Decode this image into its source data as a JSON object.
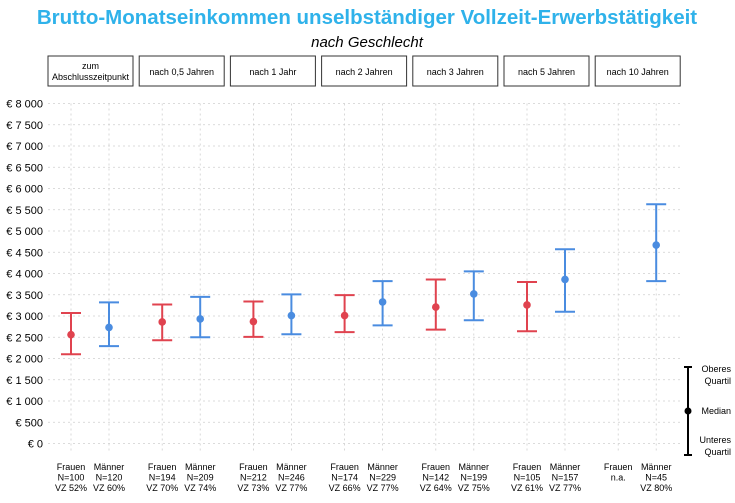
{
  "chart_data": {
    "type": "errorbar",
    "title": "Brutto-Monatseinkommen unselbständiger Vollzeit-Erwerbstätigkeit",
    "subtitle": "nach Geschlecht",
    "y_ticks": [
      "€ 0",
      "€ 500",
      "€ 1 000",
      "€ 1 500",
      "€ 2 000",
      "€ 2 500",
      "€ 3 000",
      "€ 3 500",
      "€ 4 000",
      "€ 4 500",
      "€ 5 000",
      "€ 5 500",
      "€ 6 000",
      "€ 6 500",
      "€ 7 000",
      "€ 7 500",
      "€ 8 000"
    ],
    "ylim": [
      0,
      8000
    ],
    "grid": true,
    "panels": [
      {
        "label": "zum\nAbschlusszeitpunkt",
        "groups": [
          {
            "name": "Frauen",
            "n": "N=100",
            "vz": "VZ 52%",
            "median": 2560,
            "low": 2100,
            "high": 3070
          },
          {
            "name": "Männer",
            "n": "N=120",
            "vz": "VZ 60%",
            "median": 2730,
            "low": 2290,
            "high": 3320
          }
        ]
      },
      {
        "label": "nach 0,5 Jahren",
        "groups": [
          {
            "name": "Frauen",
            "n": "N=194",
            "vz": "VZ 70%",
            "median": 2860,
            "low": 2430,
            "high": 3270
          },
          {
            "name": "Männer",
            "n": "N=209",
            "vz": "VZ 74%",
            "median": 2930,
            "low": 2500,
            "high": 3450
          }
        ]
      },
      {
        "label": "nach 1 Jahr",
        "groups": [
          {
            "name": "Frauen",
            "n": "N=212",
            "vz": "VZ 73%",
            "median": 2870,
            "low": 2510,
            "high": 3340
          },
          {
            "name": "Männer",
            "n": "N=246",
            "vz": "VZ 77%",
            "median": 3010,
            "low": 2570,
            "high": 3510
          }
        ]
      },
      {
        "label": "nach 2 Jahren",
        "groups": [
          {
            "name": "Frauen",
            "n": "N=174",
            "vz": "VZ 66%",
            "median": 3010,
            "low": 2620,
            "high": 3490
          },
          {
            "name": "Männer",
            "n": "N=229",
            "vz": "VZ 77%",
            "median": 3330,
            "low": 2780,
            "high": 3820
          }
        ]
      },
      {
        "label": "nach 3 Jahren",
        "groups": [
          {
            "name": "Frauen",
            "n": "N=142",
            "vz": "VZ 64%",
            "median": 3210,
            "low": 2680,
            "high": 3860
          },
          {
            "name": "Männer",
            "n": "N=199",
            "vz": "VZ 75%",
            "median": 3520,
            "low": 2900,
            "high": 4050
          }
        ]
      },
      {
        "label": "nach 5 Jahren",
        "groups": [
          {
            "name": "Frauen",
            "n": "N=105",
            "vz": "VZ 61%",
            "median": 3260,
            "low": 2640,
            "high": 3800
          },
          {
            "name": "Männer",
            "n": "N=157",
            "vz": "VZ 77%",
            "median": 3860,
            "low": 3100,
            "high": 4570
          }
        ]
      },
      {
        "label": "nach 10 Jahren",
        "groups": [
          {
            "name": "Frauen",
            "n": "n.a.",
            "vz": "",
            "median": null,
            "low": null,
            "high": null
          },
          {
            "name": "Männer",
            "n": "N=45",
            "vz": "VZ 80%",
            "median": 4670,
            "low": 3820,
            "high": 5630
          }
        ]
      }
    ],
    "legend": {
      "upper": "Oberes\nQuartil",
      "median": "Median",
      "lower": "Unteres\nQuartil"
    },
    "colors": {
      "title": "#2fb2ea",
      "frauen": "#e0434f",
      "maenner": "#4a8ce0",
      "legend": "#000000",
      "grid": "#cfcfcf",
      "panel_border": "#333333"
    }
  }
}
